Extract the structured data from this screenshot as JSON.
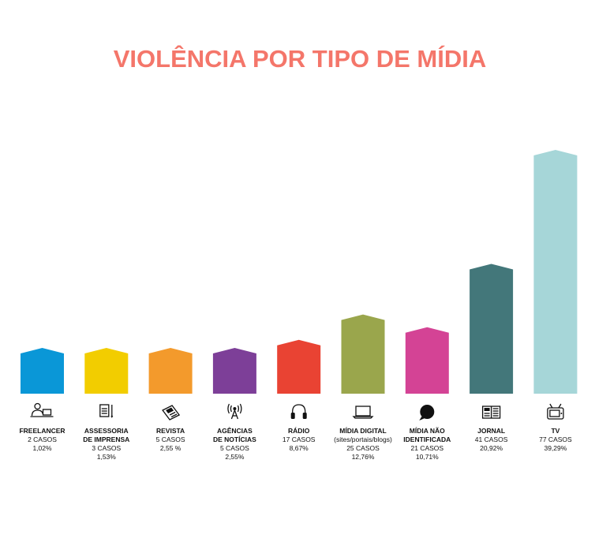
{
  "chart_data": {
    "type": "bar",
    "title": "VIOLÊNCIA POR TIPO DE MÍDIA",
    "xlabel": "",
    "ylabel": "",
    "grid": false,
    "categories": [
      {
        "label_lines": [
          "FREELANCER"
        ],
        "cases": "2 CASOS",
        "percent": "1,02%",
        "value": 2,
        "color": "#0a97d7",
        "icon": "laptop-person-icon"
      },
      {
        "label_lines": [
          "ASSESSORIA",
          "DE IMPRENSA"
        ],
        "cases": "3 CASOS",
        "percent": "1,53%",
        "value": 3,
        "color": "#f2cd00",
        "icon": "notepad-pen-icon"
      },
      {
        "label_lines": [
          "REVISTA"
        ],
        "cases": "5 CASOS",
        "percent": "2,55 %",
        "value": 5,
        "color": "#f39a2c",
        "icon": "magazine-icon"
      },
      {
        "label_lines": [
          "AGÊNCIAS",
          "DE NOTÍCIAS"
        ],
        "cases": "5 CASOS",
        "percent": "2,55%",
        "value": 5,
        "color": "#7d3f98",
        "icon": "antenna-icon"
      },
      {
        "label_lines": [
          "RÁDIO"
        ],
        "cases": "17 CASOS",
        "percent": "8,67%",
        "value": 17,
        "color": "#e94333",
        "icon": "headphones-icon"
      },
      {
        "label_lines": [
          "MÍDIA DIGITAL"
        ],
        "extra": "(sites/portais/blogs)",
        "cases": "25 CASOS",
        "percent": "12,76%",
        "value": 25,
        "color": "#9aa64c",
        "icon": "laptop-icon"
      },
      {
        "label_lines": [
          "MÍDIA NÃO",
          "IDENTIFICADA"
        ],
        "cases": "21 CASOS",
        "percent": "10,71%",
        "value": 21,
        "color": "#d44395",
        "icon": "question-icon"
      },
      {
        "label_lines": [
          "JORNAL"
        ],
        "cases": "41 CASOS",
        "percent": "20,92%",
        "value": 41,
        "color": "#43777a",
        "icon": "newspaper-icon"
      },
      {
        "label_lines": [
          "TV"
        ],
        "cases": "77 CASOS",
        "percent": "39,29%",
        "value": 77,
        "color": "#a6d6d8",
        "icon": "tv-icon"
      }
    ]
  }
}
